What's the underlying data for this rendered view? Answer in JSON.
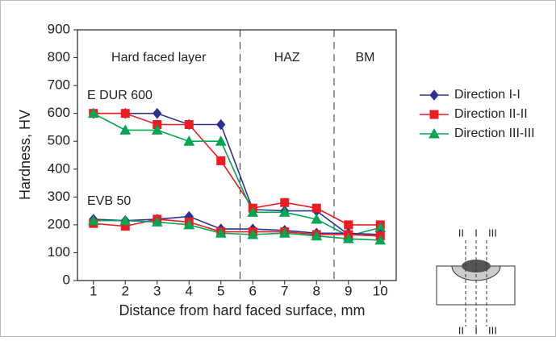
{
  "chart_data": {
    "type": "line",
    "xlabel": "Distance from hard faced surface, mm",
    "ylabel": "Hardness, HV",
    "x": [
      1,
      2,
      3,
      4,
      5,
      6,
      7,
      8,
      9,
      10
    ],
    "xlim": [
      0.5,
      10.5
    ],
    "ylim": [
      0,
      900
    ],
    "yticks": [
      0,
      100,
      200,
      300,
      400,
      500,
      600,
      700,
      800,
      900
    ],
    "zones": [
      {
        "label": "Hard faced layer",
        "from": 0.5,
        "to": 5.6
      },
      {
        "label": "HAZ",
        "from": 5.6,
        "to": 8.55
      },
      {
        "label": "BM",
        "from": 8.55,
        "to": 10.5
      }
    ],
    "series": [
      {
        "name": "Direction I-I",
        "color": "#2e3192",
        "marker": "diamond"
      },
      {
        "name": "Direction II-II",
        "color": "#ed1c24",
        "marker": "square"
      },
      {
        "name": "Direction III-III",
        "color": "#00a651",
        "marker": "triangle"
      }
    ],
    "groups": [
      {
        "label": "E DUR 600",
        "values": [
          [
            600,
            600,
            600,
            560,
            560,
            255,
            250,
            250,
            165,
            160
          ],
          [
            600,
            600,
            560,
            560,
            430,
            260,
            280,
            260,
            200,
            200
          ],
          [
            600,
            540,
            540,
            500,
            500,
            245,
            245,
            220,
            160,
            190
          ]
        ]
      },
      {
        "label": "EVB 50",
        "values": [
          [
            220,
            215,
            220,
            230,
            185,
            185,
            180,
            170,
            170,
            165
          ],
          [
            205,
            195,
            220,
            210,
            175,
            175,
            175,
            165,
            165,
            160
          ],
          [
            215,
            215,
            210,
            200,
            170,
            165,
            170,
            160,
            150,
            145
          ]
        ]
      }
    ],
    "sketch_labels": [
      "II",
      "I",
      "III"
    ]
  }
}
